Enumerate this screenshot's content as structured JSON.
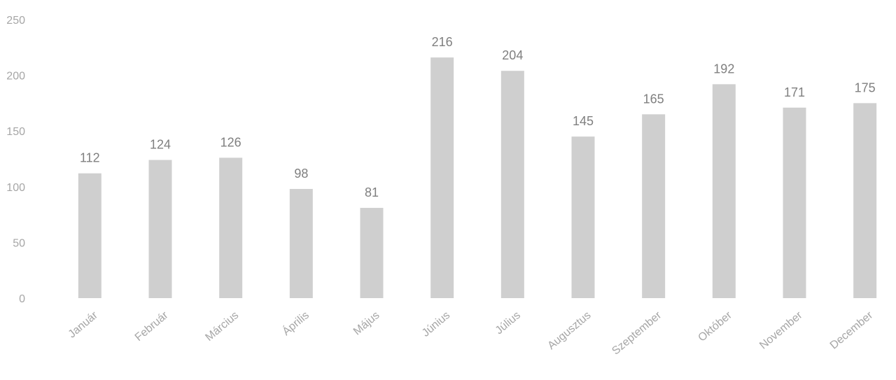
{
  "chart_data": {
    "type": "bar",
    "title": "",
    "xlabel": "",
    "ylabel": "",
    "categories": [
      "Január",
      "Február",
      "Március",
      "Április",
      "Május",
      "Június",
      "Július",
      "Augusztus",
      "Szeptember",
      "Október",
      "November",
      "December"
    ],
    "values": [
      112,
      124,
      126,
      98,
      81,
      216,
      204,
      145,
      165,
      192,
      171,
      175
    ],
    "data_labels": [
      "112",
      "124",
      "126",
      "98",
      "81",
      "216",
      "204",
      "145",
      "165",
      "192",
      "171",
      "175"
    ],
    "ylim": [
      0,
      250
    ],
    "y_ticks": [
      0,
      50,
      100,
      150,
      200,
      250
    ],
    "y_tick_labels": [
      "0",
      "50",
      "100",
      "150",
      "200",
      "250"
    ],
    "grid": false,
    "legend": "none",
    "colors": {
      "bar": "#cfcfcf",
      "tick_label": "#a6a6a6",
      "data_label": "#7f7f7f"
    }
  }
}
